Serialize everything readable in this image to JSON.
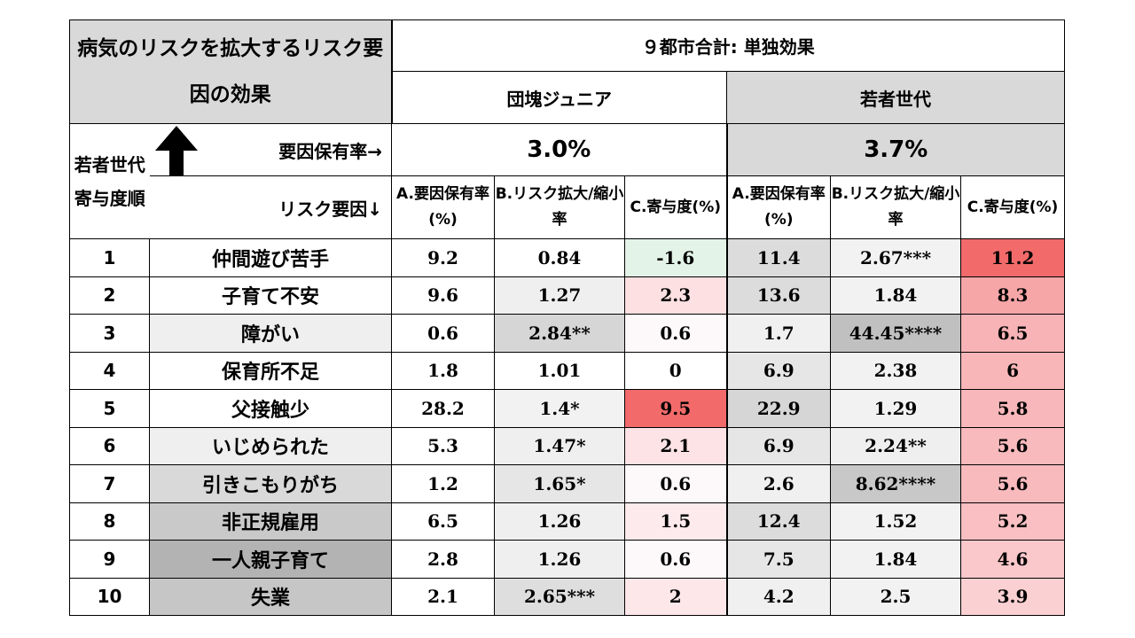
{
  "title": "病気のリスクを拡大するリスク要因の効果",
  "main_header": "９都市合計: 単独効果",
  "groups": [
    {
      "label": "団塊ジュニア",
      "rate": "3.0%"
    },
    {
      "label": "若者世代",
      "rate": "3.7%"
    }
  ],
  "order_header": "若者世代寄与度順",
  "row_header_rate": "要因保有率→",
  "row_header_risk": "リスク要因↓",
  "column_headers": {
    "a": "A.要因保有率(%)",
    "b": "B.リスク拡大/縮小率",
    "c": "C.寄与度(%)"
  },
  "rows": [
    {
      "rank": "1",
      "factor": "仲間遊び苦手",
      "j_a": "9.2",
      "j_b": "0.84",
      "j_c": "-1.6",
      "y_a": "11.4",
      "y_b": "2.67***",
      "y_c": "11.2"
    },
    {
      "rank": "2",
      "factor": "子育て不安",
      "j_a": "9.6",
      "j_b": "1.27",
      "j_c": "2.3",
      "y_a": "13.6",
      "y_b": "1.84",
      "y_c": "8.3"
    },
    {
      "rank": "3",
      "factor": "障がい",
      "j_a": "0.6",
      "j_b": "2.84**",
      "j_c": "0.6",
      "y_a": "1.7",
      "y_b": "44.45****",
      "y_c": "6.5"
    },
    {
      "rank": "4",
      "factor": "保育所不足",
      "j_a": "1.8",
      "j_b": "1.01",
      "j_c": "0",
      "y_a": "6.9",
      "y_b": "2.38",
      "y_c": "6"
    },
    {
      "rank": "5",
      "factor": "父接触少",
      "j_a": "28.2",
      "j_b": "1.4*",
      "j_c": "9.5",
      "y_a": "22.9",
      "y_b": "1.29",
      "y_c": "5.8"
    },
    {
      "rank": "6",
      "factor": "いじめられた",
      "j_a": "5.3",
      "j_b": "1.47*",
      "j_c": "2.1",
      "y_a": "6.9",
      "y_b": "2.24**",
      "y_c": "5.6"
    },
    {
      "rank": "7",
      "factor": "引きこもりがち",
      "j_a": "1.2",
      "j_b": "1.65*",
      "j_c": "0.6",
      "y_a": "2.6",
      "y_b": "8.62****",
      "y_c": "5.6"
    },
    {
      "rank": "8",
      "factor": "非正規雇用",
      "j_a": "6.5",
      "j_b": "1.26",
      "j_c": "1.5",
      "y_a": "12.4",
      "y_b": "1.52",
      "y_c": "5.2"
    },
    {
      "rank": "9",
      "factor": "一人親子育て",
      "j_a": "2.8",
      "j_b": "1.26",
      "j_c": "0.6",
      "y_a": "7.5",
      "y_b": "1.84",
      "y_c": "4.6"
    },
    {
      "rank": "10",
      "factor": "失業",
      "j_a": "2.1",
      "j_b": "2.65***",
      "j_c": "2",
      "y_a": "4.2",
      "y_b": "2.5",
      "y_c": "3.9"
    }
  ],
  "colors": {
    "header_gray": "#d9d9d9",
    "factor_bg": [
      "#ffffff",
      "#ffffff",
      "#efefef",
      "#ffffff",
      "#ffffff",
      "#efefef",
      "#d9d9d9",
      "#c9c9c9",
      "#b3b3b3",
      "#c6c6c6"
    ],
    "j_a_bg": [
      "#ffffff",
      "#ffffff",
      "#ffffff",
      "#ffffff",
      "#ffffff",
      "#ffffff",
      "#ffffff",
      "#ffffff",
      "#ffffff",
      "#ffffff"
    ],
    "j_b_bg": [
      "#ffffff",
      "#efefef",
      "#d6d6d6",
      "#ffffff",
      "#f2f2f2",
      "#efefef",
      "#e6e6e6",
      "#efefef",
      "#efefef",
      "#dedede"
    ],
    "j_c_bg": [
      "#e4f3e8",
      "#fde0e2",
      "#fdf8f9",
      "#ffffff",
      "#f26a6a",
      "#fde3e5",
      "#fdf8f9",
      "#fdeaec",
      "#fdf8f9",
      "#fde7e9"
    ],
    "y_a_bg": [
      "#dcdcdc",
      "#dcdcdc",
      "#f0f0f0",
      "#e6e6e6",
      "#d6d6d6",
      "#e6e6e6",
      "#f0f0f0",
      "#dcdcdc",
      "#e6e6e6",
      "#f0f0f0"
    ],
    "y_b_bg": [
      "#f2f2f2",
      "#f2f2f2",
      "#c0c0c0",
      "#f2f2f2",
      "#f2f2f2",
      "#efefef",
      "#c8c8c8",
      "#f2f2f2",
      "#f2f2f2",
      "#f2f2f2"
    ],
    "y_c_bg": [
      "#f26a6a",
      "#f7a6a8",
      "#f8b3b6",
      "#f8b6b9",
      "#f8b8bb",
      "#f8babd",
      "#f8babd",
      "#f9bfc2",
      "#fac8ca",
      "#fad0d2"
    ]
  }
}
